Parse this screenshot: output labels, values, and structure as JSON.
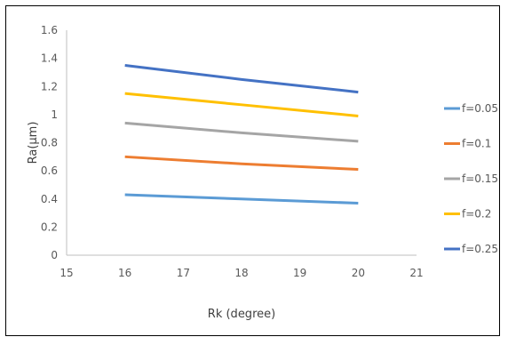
{
  "chart_data": {
    "type": "line",
    "xlabel": "Rk (degree)",
    "ylabel": "Ra(μm)",
    "xlim": [
      15,
      21
    ],
    "ylim": [
      0,
      1.6
    ],
    "xticks": [
      15,
      16,
      17,
      18,
      19,
      20,
      21
    ],
    "yticks": [
      0,
      0.2,
      0.4,
      0.6,
      0.8,
      1,
      1.2,
      1.4,
      1.6
    ],
    "grid": false,
    "legend_position": "right",
    "x": [
      16,
      18,
      20
    ],
    "series": [
      {
        "name": "f=0.05",
        "color": "#5b9bd5",
        "values": [
          0.43,
          0.4,
          0.37
        ]
      },
      {
        "name": "f=0.1",
        "color": "#ed7d31",
        "values": [
          0.7,
          0.65,
          0.61
        ]
      },
      {
        "name": "f=0.15",
        "color": "#a5a5a5",
        "values": [
          0.94,
          0.87,
          0.81
        ]
      },
      {
        "name": "f=0.2",
        "color": "#ffc000",
        "values": [
          1.15,
          1.07,
          0.99
        ]
      },
      {
        "name": "f=0.25",
        "color": "#4472c4",
        "values": [
          1.35,
          1.25,
          1.16
        ]
      }
    ]
  }
}
